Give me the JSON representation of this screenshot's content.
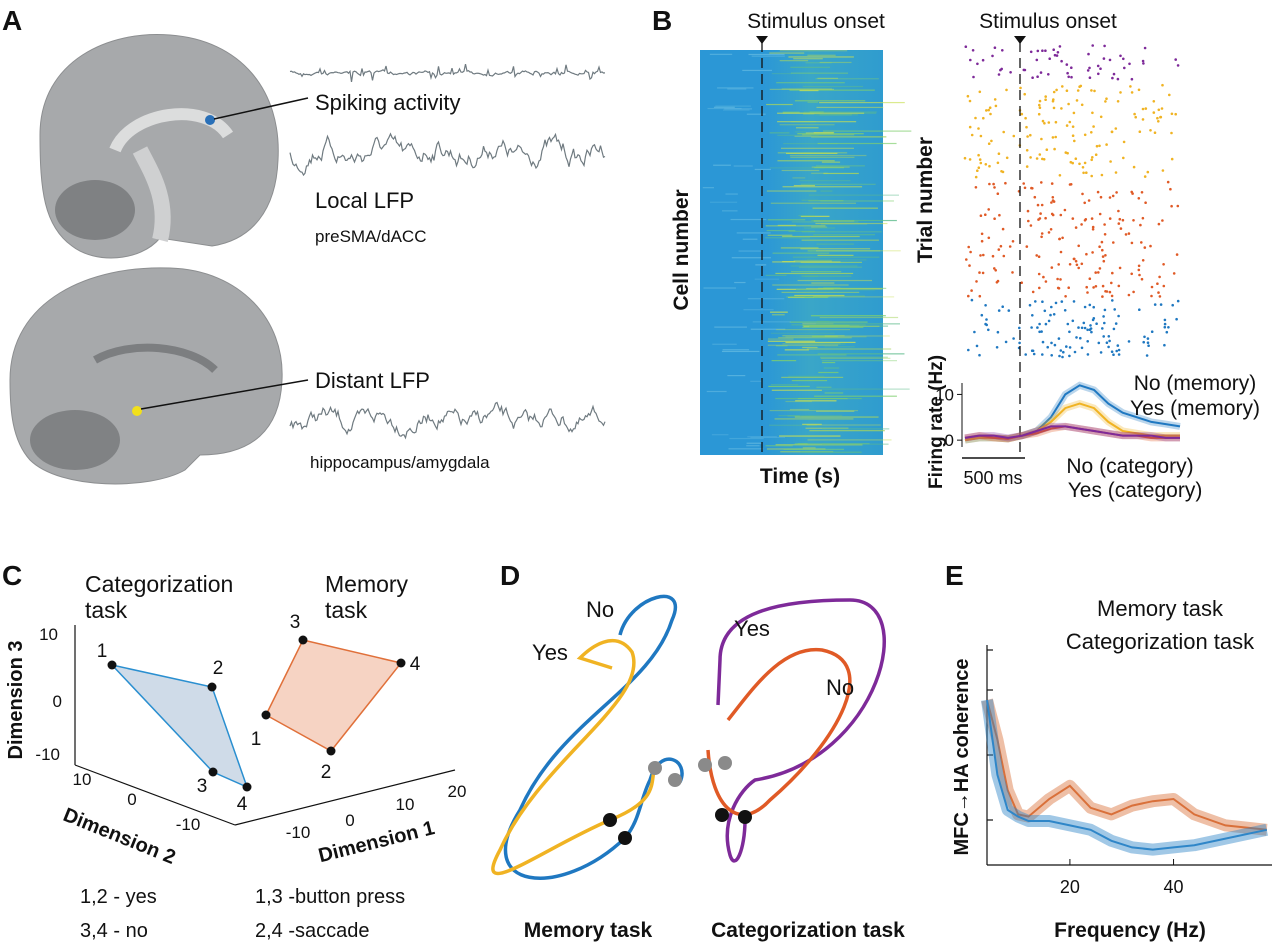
{
  "panels": {
    "A": {
      "label": "A",
      "spiking": "Spiking activity",
      "local": "Local LFP",
      "local_region": "preSMA/dACC",
      "distant": "Distant LFP",
      "distant_region": "hippocampus/amygdala"
    },
    "B": {
      "label": "B",
      "heatmap": {
        "onset": "Stimulus onset",
        "ylabel": "Cell number",
        "xlabel": "Time (s)"
      },
      "raster": {
        "onset": "Stimulus onset",
        "ylabel": "Trial number"
      },
      "rate": {
        "ylabel": "Firing rate (Hz)",
        "ylim": [
          -1.5,
          12.5
        ],
        "yticks": [
          0,
          10
        ],
        "scalebar": "500 ms",
        "series": [
          {
            "name": "No (memory)",
            "color": "#1f78c1",
            "values": [
              0,
              0.5,
              0.5,
              0.3,
              1,
              2,
              5,
              10,
              12,
              11,
              8,
              6,
              5,
              4,
              3.5,
              3
            ]
          },
          {
            "name": "Yes (memory)",
            "color": "#f0b323",
            "values": [
              0,
              0.5,
              0.5,
              0.3,
              1,
              2,
              4,
              7,
              8,
              7,
              4,
              2,
              1.5,
              1,
              1,
              1
            ]
          },
          {
            "name": "No (category)",
            "color": "#e05a26",
            "values": [
              0.5,
              1,
              0.5,
              0.3,
              1,
              1.5,
              2.5,
              3,
              2.5,
              2,
              1.5,
              1,
              1,
              0.5,
              0.5,
              0.5
            ]
          },
          {
            "name": "Yes (category)",
            "color": "#7e2a99",
            "values": [
              0.5,
              1,
              1,
              0.5,
              1,
              2,
              3,
              3,
              2.5,
              2,
              1.5,
              1,
              1,
              1,
              0.5,
              0.5
            ]
          }
        ]
      }
    },
    "C": {
      "label": "C",
      "categorization": [
        "Categorization",
        "task"
      ],
      "memory": [
        "Memory",
        "task"
      ],
      "dimension1": "Dimension 1",
      "dimension2": "Dimension 2",
      "dimension3": "Dimension 3",
      "dim1_ticks": [
        "-10",
        "0",
        "10",
        "20"
      ],
      "dim2_ticks": [
        "10",
        "0",
        "-10"
      ],
      "dim3_ticks": [
        "10",
        "0",
        "-10"
      ],
      "categorization_points": [
        "1",
        "2",
        "3",
        "4"
      ],
      "memory_points": [
        "1",
        "2",
        "3",
        "4"
      ],
      "notes": [
        "1,2 - yes",
        "3,4 - no",
        "1,3 -button press",
        "2,4 -saccade"
      ]
    },
    "D": {
      "label": "D",
      "memory": {
        "no": "No",
        "yes": "Yes",
        "title": "Memory task"
      },
      "categorization": {
        "yes": "Yes",
        "no": "No",
        "title": "Categorization task"
      }
    },
    "E": {
      "label": "E",
      "ylabel": "MFC→HA coherence",
      "xlabel": "Frequency (Hz)",
      "xlim": [
        4,
        59
      ],
      "ylim": [
        0,
        1
      ],
      "xticks": [
        20,
        40
      ],
      "x": [
        4,
        6,
        8,
        10,
        12,
        16,
        20,
        24,
        28,
        32,
        36,
        40,
        44,
        50,
        58
      ],
      "series": [
        {
          "name": "Memory task",
          "color": "#d9703a",
          "values": [
            0.75,
            0.57,
            0.34,
            0.23,
            0.22,
            0.3,
            0.36,
            0.26,
            0.23,
            0.27,
            0.29,
            0.3,
            0.23,
            0.18,
            0.16
          ]
        },
        {
          "name": "Categorization task",
          "color": "#2f86c8",
          "values": [
            0.75,
            0.41,
            0.25,
            0.22,
            0.2,
            0.2,
            0.18,
            0.16,
            0.11,
            0.08,
            0.07,
            0.08,
            0.09,
            0.12,
            0.16
          ]
        }
      ]
    }
  }
}
